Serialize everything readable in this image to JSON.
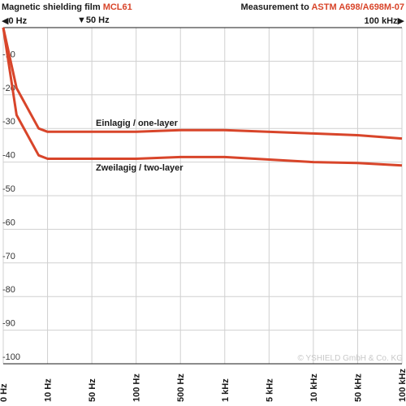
{
  "header": {
    "title_prefix": "Magnetic shielding film",
    "product": "MCL61",
    "measurement_prefix": "Measurement to",
    "standard": "ASTM A698/A698M-07"
  },
  "markers": {
    "zero": "0 Hz",
    "fifty": "▼50 Hz",
    "hundred": "100 kHz"
  },
  "copyright": "© YSHIELD GmbH & Co. KG",
  "colors": {
    "accent": "#d8452a",
    "grid": "#d0d0d0",
    "axis": "#1a1a1a"
  },
  "chart_data": {
    "type": "line",
    "x_scale": "log-categorical",
    "categories": [
      "0 Hz",
      "10 Hz",
      "50 Hz",
      "100 Hz",
      "500 Hz",
      "1 kHz",
      "5 kHz",
      "10 kHz",
      "50 kHz",
      "100 kHz"
    ],
    "y_ticks": [
      "-10",
      "-20",
      "-30",
      "-40",
      "-50",
      "-60",
      "-70",
      "-80",
      "-90",
      "-100"
    ],
    "ylim": [
      -100,
      0
    ],
    "grid": true,
    "series": [
      {
        "name": "Einlagig / one-layer",
        "points": [
          [
            0,
            0
          ],
          [
            0.3,
            -18
          ],
          [
            0.8,
            -30
          ],
          [
            1,
            -31
          ],
          [
            3,
            -31
          ],
          [
            4,
            -30.5
          ],
          [
            5,
            -30.5
          ],
          [
            7,
            -31.5
          ],
          [
            8,
            -32
          ],
          [
            9,
            -33
          ]
        ]
      },
      {
        "name": "Zweilagig / two-layer",
        "points": [
          [
            0,
            0
          ],
          [
            0.3,
            -26
          ],
          [
            0.8,
            -38
          ],
          [
            1,
            -39
          ],
          [
            3,
            -39
          ],
          [
            4,
            -38.5
          ],
          [
            5,
            -38.5
          ],
          [
            7,
            -40
          ],
          [
            8,
            -40.3
          ],
          [
            9,
            -41
          ]
        ]
      }
    ]
  }
}
